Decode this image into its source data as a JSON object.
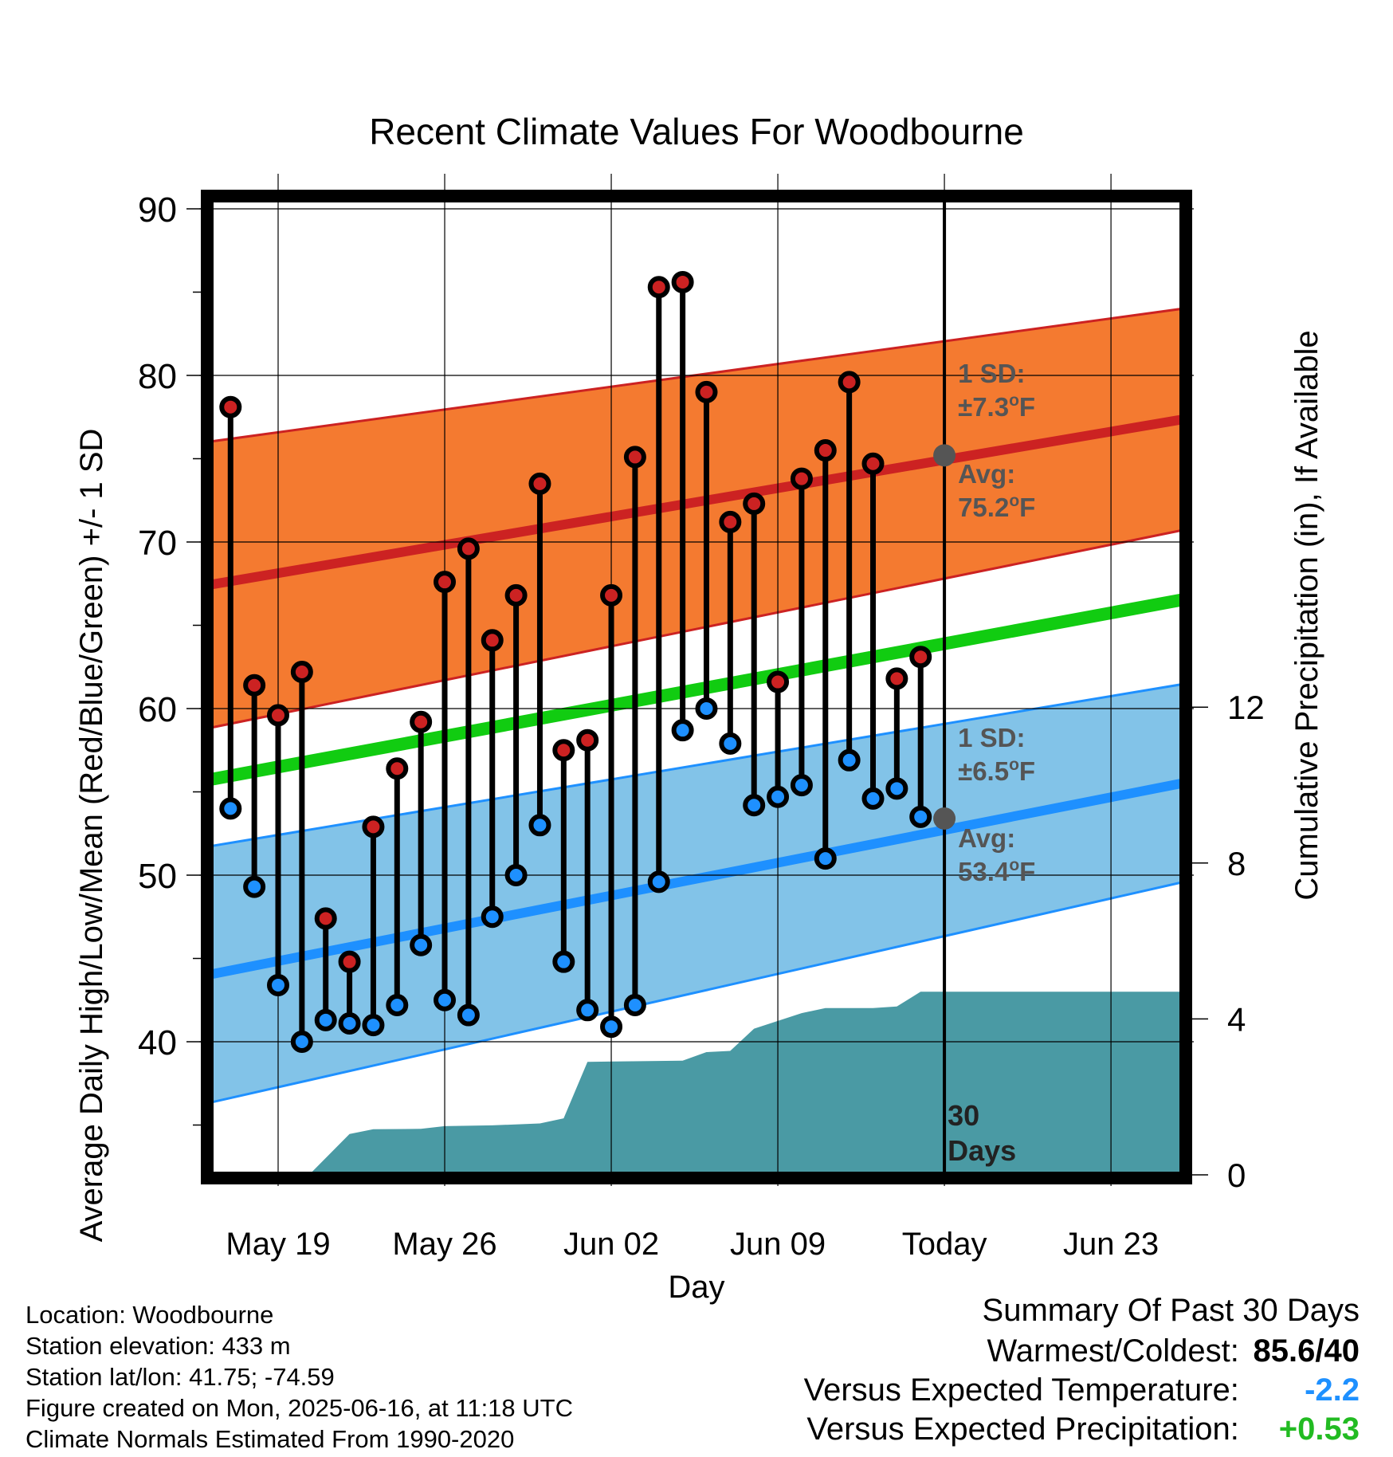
{
  "title": "Recent Climate Values For Woodbourne",
  "xlabel": "Day",
  "ylabel_left": "Average Daily High/Low/Mean (Red/Blue/Green) +/- 1 SD",
  "ylabel_right": "Cumulative Precipitation (in), If Available",
  "chart_data": {
    "type": "line",
    "title": "Recent Climate Values For Woodbourne",
    "xlabel": "Day",
    "ylabel": "Average Daily High/Low/Mean (Red/Blue/Green) +/- 1 SD",
    "ylabel_right": "Cumulative Precipitation (in), If Available",
    "x_range": [
      "2025-05-16",
      "2025-06-27"
    ],
    "ylim": [
      32,
      91
    ],
    "ylim_right": [
      0,
      24
    ],
    "y_ticks": [
      40,
      50,
      60,
      70,
      80,
      90
    ],
    "y_right_ticks": [
      0,
      4,
      8,
      12
    ],
    "x_ticks": [
      {
        "date": "2025-05-19",
        "label": "May 19"
      },
      {
        "date": "2025-05-26",
        "label": "May 26"
      },
      {
        "date": "2025-06-02",
        "label": "Jun 02"
      },
      {
        "date": "2025-06-09",
        "label": "Jun 09"
      },
      {
        "date": "2025-06-16",
        "label": "Today"
      },
      {
        "date": "2025-06-23",
        "label": "Jun 23"
      }
    ],
    "grid": true,
    "days": [
      "2025-05-17",
      "2025-05-18",
      "2025-05-19",
      "2025-05-20",
      "2025-05-21",
      "2025-05-22",
      "2025-05-23",
      "2025-05-24",
      "2025-05-25",
      "2025-05-26",
      "2025-05-27",
      "2025-05-28",
      "2025-05-29",
      "2025-05-30",
      "2025-05-31",
      "2025-06-01",
      "2025-06-02",
      "2025-06-03",
      "2025-06-04",
      "2025-06-05",
      "2025-06-06",
      "2025-06-07",
      "2025-06-08",
      "2025-06-09",
      "2025-06-10",
      "2025-06-11",
      "2025-06-12",
      "2025-06-13",
      "2025-06-14",
      "2025-06-15"
    ],
    "series": [
      {
        "name": "High",
        "color": "#cc2222",
        "values": [
          78.1,
          61.4,
          59.6,
          62.2,
          47.4,
          44.8,
          52.9,
          56.4,
          59.2,
          67.6,
          69.6,
          64.1,
          66.8,
          73.5,
          57.5,
          58.1,
          66.8,
          75.1,
          85.3,
          85.6,
          79.0,
          71.2,
          72.3,
          61.6,
          73.8,
          75.5,
          79.6,
          74.7,
          61.8,
          63.1
        ]
      },
      {
        "name": "Low",
        "color": "#1e90ff",
        "values": [
          54.0,
          49.3,
          43.4,
          40.0,
          41.3,
          41.1,
          41.0,
          42.2,
          45.8,
          42.5,
          41.6,
          47.5,
          50.0,
          53.0,
          44.8,
          41.9,
          40.9,
          42.2,
          49.6,
          58.7,
          60.0,
          57.9,
          54.2,
          54.7,
          55.4,
          51.0,
          56.9,
          54.6,
          55.2,
          53.5
        ]
      }
    ],
    "normal_high": {
      "start": 67.4,
      "end": 77.6,
      "sd_start": 8.6,
      "sd_end": 6.6,
      "today_avg": 75.2,
      "sd_label": 7.3
    },
    "normal_low": {
      "start": 44.0,
      "end": 55.8,
      "sd_start": 7.7,
      "sd_end": 5.9,
      "today_avg": 53.4,
      "sd_label": 6.5
    },
    "normal_mean": {
      "start": 55.7,
      "end": 66.8
    },
    "precip_cumulative": [
      {
        "date": "2025-05-18.8",
        "value": 0
      },
      {
        "date": "2025-05-20.3",
        "value": 0
      },
      {
        "date": "2025-05-22",
        "value": 1.05
      },
      {
        "date": "2025-05-23",
        "value": 1.17
      },
      {
        "date": "2025-05-25",
        "value": 1.18
      },
      {
        "date": "2025-05-26",
        "value": 1.25
      },
      {
        "date": "2025-05-28",
        "value": 1.27
      },
      {
        "date": "2025-05-30",
        "value": 1.32
      },
      {
        "date": "2025-05-31",
        "value": 1.45
      },
      {
        "date": "2025-06-01",
        "value": 2.9
      },
      {
        "date": "2025-06-05",
        "value": 2.93
      },
      {
        "date": "2025-06-06",
        "value": 3.15
      },
      {
        "date": "2025-06-07",
        "value": 3.18
      },
      {
        "date": "2025-06-08",
        "value": 3.75
      },
      {
        "date": "2025-06-10",
        "value": 4.15
      },
      {
        "date": "2025-06-11",
        "value": 4.28
      },
      {
        "date": "2025-06-13",
        "value": 4.28
      },
      {
        "date": "2025-06-14",
        "value": 4.32
      },
      {
        "date": "2025-06-15",
        "value": 4.7
      },
      {
        "date": "2025-06-27",
        "value": 4.7
      }
    ]
  },
  "annotations": {
    "high_sd_label": "1 SD:",
    "high_sd_value": "±7.3",
    "high_avg_label": "Avg:",
    "high_avg_value": "75.2",
    "low_sd_label": "1 SD:",
    "low_sd_value": "±6.5",
    "low_avg_label": "Avg:",
    "low_avg_value": "53.4",
    "degree_unit": "o",
    "f_unit": "F",
    "days_count": "30",
    "days_word": "Days"
  },
  "meta": {
    "location": "Location: Woodbourne",
    "elevation": "Station elevation: 433 m",
    "latlon": "Station lat/lon: 41.75; -74.59",
    "created": "Figure created on Mon, 2025-06-16, at 11:18 UTC",
    "normals": "Climate Normals Estimated From 1990-2020"
  },
  "summary": {
    "heading": "Summary Of Past 30 Days",
    "warmest_label": "Warmest/Coldest:",
    "warmest_value": "85.6/40",
    "temp_label": "Versus Expected Temperature:",
    "temp_value": "-2.2",
    "temp_color": "#1e90ff",
    "precip_label": "Versus Expected Precipitation:",
    "precip_value": "+0.53",
    "precip_color": "#22bb22"
  },
  "colors": {
    "high_band": "#f47a30",
    "high_line": "#cc2222",
    "low_band": "#82c3e8",
    "low_line": "#1e90ff",
    "mean_line": "#11cc11",
    "precip_fill": "#4a9aa4",
    "marker_high": "#cc2222",
    "marker_low": "#1e90ff"
  }
}
